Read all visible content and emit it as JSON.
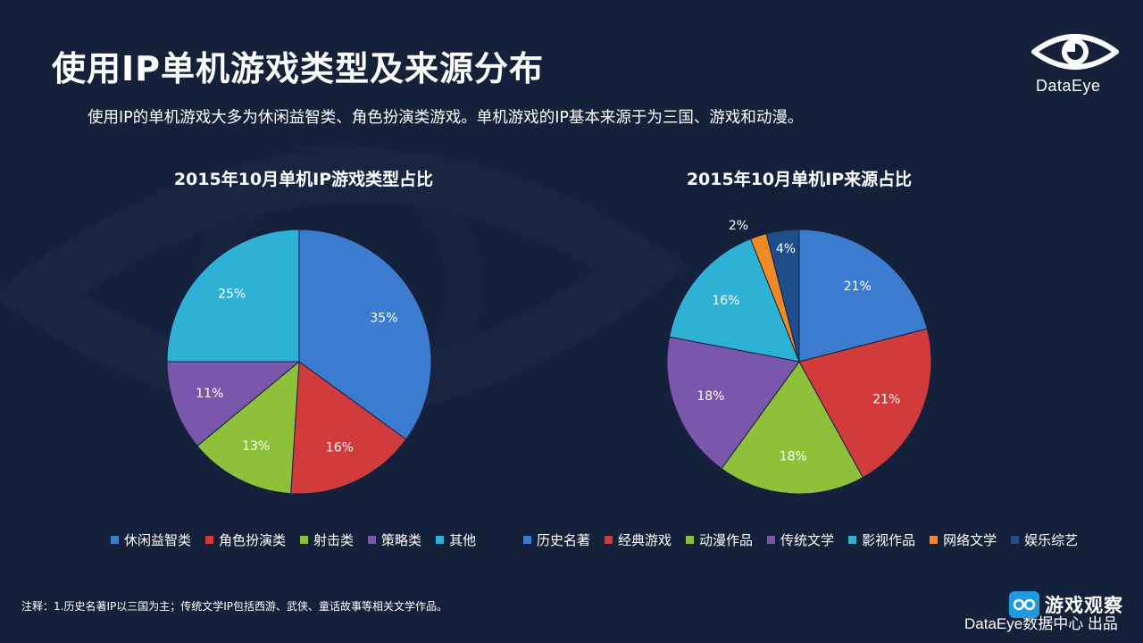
{
  "header": {
    "title": "使用IP单机游戏类型及来源分布",
    "subtitle": "使用IP的单机游戏大多为休闲益智类、角色扮演类游戏。单机游戏的IP基本来源于为三国、游戏和动漫。"
  },
  "logo": {
    "text": "DataEye",
    "icon": "eye-icon"
  },
  "chart_data": [
    {
      "type": "pie",
      "title": "2015年10月单机IP游戏类型占比",
      "categories": [
        "休闲益智类",
        "角色扮演类",
        "射击类",
        "策略类",
        "其他"
      ],
      "values": [
        35,
        16,
        13,
        11,
        25
      ],
      "labels": [
        "35%",
        "16%",
        "13%",
        "11%",
        "25%"
      ],
      "colors": [
        "#3b7bd0",
        "#d13b3b",
        "#8ec03a",
        "#7b56ad",
        "#2fb1d6"
      ],
      "legend": "bottom"
    },
    {
      "type": "pie",
      "title": "2015年10月单机IP来源占比",
      "categories": [
        "历史名著",
        "经典游戏",
        "动漫作品",
        "传统文学",
        "影视作品",
        "网络文学",
        "娱乐综艺"
      ],
      "values": [
        21,
        21,
        18,
        18,
        16,
        2,
        4
      ],
      "labels": [
        "21%",
        "21%",
        "18%",
        "18%",
        "16%",
        "2%",
        "4%"
      ],
      "colors": [
        "#3b7bd0",
        "#d13b3b",
        "#8ec03a",
        "#7b56ad",
        "#2fb1d6",
        "#f08a24",
        "#1d4e8a"
      ],
      "legend": "bottom"
    }
  ],
  "footer": {
    "note": "注释：1.历史名著IP以三国为主；传统文学IP包括西游、武侠、童话故事等相关文学作品。",
    "credit": "DataEye数据中心 出品",
    "watermark": "游戏观察"
  },
  "colors": {
    "background": "#15203a"
  }
}
